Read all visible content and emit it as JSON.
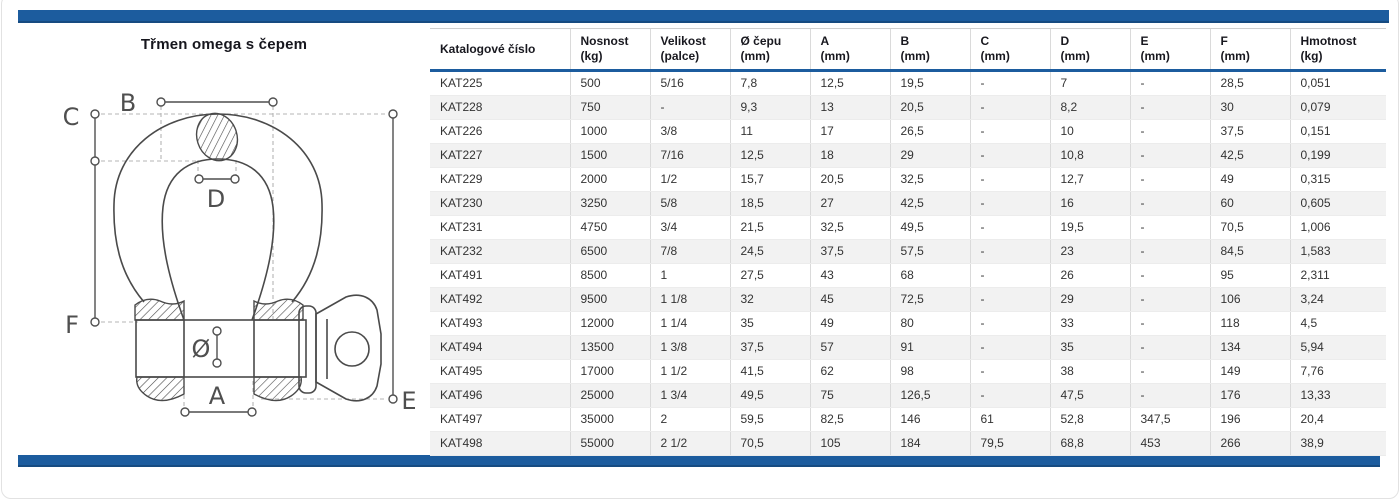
{
  "page": {
    "title": "Třmen omega s čepem"
  },
  "colors": {
    "accent_blue": "#1c5c9e",
    "row_alt": "#f2f2f2"
  },
  "diagram": {
    "labels": {
      "B": "B",
      "C": "C",
      "D": "D",
      "F": "F",
      "diameter": "Ø",
      "A": "A",
      "E": "E"
    }
  },
  "table": {
    "columns": [
      {
        "label": "Katalogové číslo",
        "unit": ""
      },
      {
        "label": "Nosnost",
        "unit": "(kg)"
      },
      {
        "label": "Velikost",
        "unit": "(palce)"
      },
      {
        "label": "Ø čepu",
        "unit": "(mm)"
      },
      {
        "label": "A",
        "unit": "(mm)"
      },
      {
        "label": "B",
        "unit": "(mm)"
      },
      {
        "label": "C",
        "unit": "(mm)"
      },
      {
        "label": "D",
        "unit": "(mm)"
      },
      {
        "label": "E",
        "unit": "(mm)"
      },
      {
        "label": "F",
        "unit": "(mm)"
      },
      {
        "label": "Hmotnost",
        "unit": "(kg)"
      }
    ],
    "rows": [
      [
        "KAT225",
        "500",
        "5/16",
        "7,8",
        "12,5",
        "19,5",
        "-",
        "7",
        "-",
        "28,5",
        "0,051"
      ],
      [
        "KAT228",
        "750",
        "-",
        "9,3",
        "13",
        "20,5",
        "-",
        "8,2",
        "-",
        "30",
        "0,079"
      ],
      [
        "KAT226",
        "1000",
        "3/8",
        "11",
        "17",
        "26,5",
        "-",
        "10",
        "-",
        "37,5",
        "0,151"
      ],
      [
        "KAT227",
        "1500",
        "7/16",
        "12,5",
        "18",
        "29",
        "-",
        "10,8",
        "-",
        "42,5",
        "0,199"
      ],
      [
        "KAT229",
        "2000",
        "1/2",
        "15,7",
        "20,5",
        "32,5",
        "-",
        "12,7",
        "-",
        "49",
        "0,315"
      ],
      [
        "KAT230",
        "3250",
        "5/8",
        "18,5",
        "27",
        "42,5",
        "-",
        "16",
        "-",
        "60",
        "0,605"
      ],
      [
        "KAT231",
        "4750",
        "3/4",
        "21,5",
        "32,5",
        "49,5",
        "-",
        "19,5",
        "-",
        "70,5",
        "1,006"
      ],
      [
        "KAT232",
        "6500",
        "7/8",
        "24,5",
        "37,5",
        "57,5",
        "-",
        "23",
        "-",
        "84,5",
        "1,583"
      ],
      [
        "KAT491",
        "8500",
        "1",
        "27,5",
        "43",
        "68",
        "-",
        "26",
        "-",
        "95",
        "2,311"
      ],
      [
        "KAT492",
        "9500",
        "1 1/8",
        "32",
        "45",
        "72,5",
        "-",
        "29",
        "-",
        "106",
        "3,24"
      ],
      [
        "KAT493",
        "12000",
        "1 1/4",
        "35",
        "49",
        "80",
        "-",
        "33",
        "-",
        "118",
        "4,5"
      ],
      [
        "KAT494",
        "13500",
        "1 3/8",
        "37,5",
        "57",
        "91",
        "-",
        "35",
        "-",
        "134",
        "5,94"
      ],
      [
        "KAT495",
        "17000",
        "1 1/2",
        "41,5",
        "62",
        "98",
        "-",
        "38",
        "-",
        "149",
        "7,76"
      ],
      [
        "KAT496",
        "25000",
        "1 3/4",
        "49,5",
        "75",
        "126,5",
        "-",
        "47,5",
        "-",
        "176",
        "13,33"
      ],
      [
        "KAT497",
        "35000",
        "2",
        "59,5",
        "82,5",
        "146",
        "61",
        "52,8",
        "347,5",
        "196",
        "20,4"
      ],
      [
        "KAT498",
        "55000",
        "2 1/2",
        "70,5",
        "105",
        "184",
        "79,5",
        "68,8",
        "453",
        "266",
        "38,9"
      ]
    ]
  }
}
